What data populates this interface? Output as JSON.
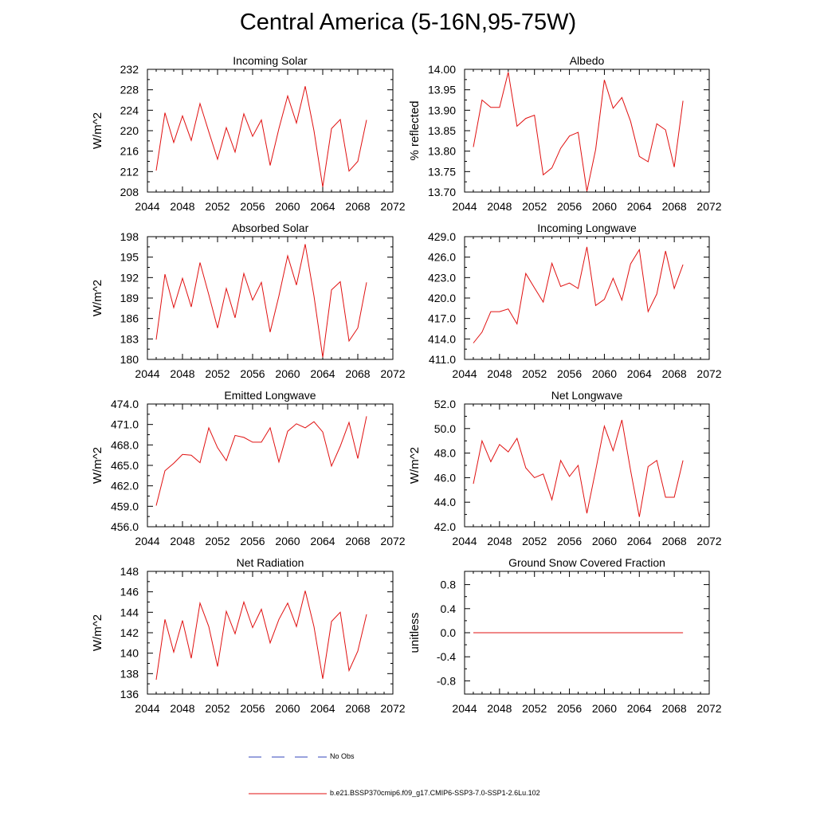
{
  "title": "Central America (5-16N,95-75W)",
  "colors": {
    "model": "#e01010",
    "obs": "#3344bb",
    "axis": "#000000"
  },
  "legend": {
    "obs_label": "No Obs",
    "model_label": "b.e21.BSSP370cmip6.f09_g17.CMIP6-SSP3-7.0-SSP1-2.6Lu.102"
  },
  "chart_data": [
    {
      "type": "line",
      "title": "Incoming Solar",
      "ylabel": "W/m^2",
      "xlim": [
        2044,
        2072
      ],
      "ylim": [
        208,
        232
      ],
      "xticks": [
        "2044",
        "2048",
        "2052",
        "2056",
        "2060",
        "2064",
        "2068",
        "2072"
      ],
      "yticks": [
        "208",
        "212",
        "216",
        "220",
        "224",
        "228",
        "232"
      ],
      "x": [
        2045,
        2046,
        2047,
        2048,
        2049,
        2050,
        2051,
        2052,
        2053,
        2054,
        2055,
        2056,
        2057,
        2058,
        2059,
        2060,
        2061,
        2062,
        2063,
        2064,
        2065,
        2066,
        2067,
        2068,
        2069
      ],
      "series": [
        {
          "values": [
            212.2,
            223.5,
            217.7,
            222.9,
            218.1,
            225.3,
            219.8,
            214.4,
            220.6,
            215.8,
            223.3,
            218.9,
            222.1,
            213.2,
            220.4,
            226.8,
            221.5,
            228.7,
            220.0,
            209.0,
            220.4,
            222.2,
            212.1,
            214.0,
            222.1
          ]
        }
      ]
    },
    {
      "type": "line",
      "title": "Albedo",
      "ylabel": "% reflected",
      "xlim": [
        2044,
        2072
      ],
      "ylim": [
        13.7,
        14.0
      ],
      "xticks": [
        "2044",
        "2048",
        "2052",
        "2056",
        "2060",
        "2064",
        "2068",
        "2072"
      ],
      "yticks": [
        "13.70",
        "13.75",
        "13.80",
        "13.85",
        "13.90",
        "13.95",
        "14.00"
      ],
      "x": [
        2045,
        2046,
        2047,
        2048,
        2049,
        2050,
        2051,
        2052,
        2053,
        2054,
        2055,
        2056,
        2057,
        2058,
        2059,
        2060,
        2061,
        2062,
        2063,
        2064,
        2065,
        2066,
        2067,
        2068,
        2069
      ],
      "series": [
        {
          "values": [
            13.81,
            13.925,
            13.907,
            13.907,
            13.993,
            13.861,
            13.88,
            13.888,
            13.742,
            13.759,
            13.807,
            13.837,
            13.846,
            13.702,
            13.804,
            13.974,
            13.905,
            13.931,
            13.873,
            13.787,
            13.774,
            13.867,
            13.852,
            13.761,
            13.923
          ]
        }
      ]
    },
    {
      "type": "line",
      "title": "Absorbed Solar",
      "ylabel": "W/m^2",
      "xlim": [
        2044,
        2072
      ],
      "ylim": [
        180,
        198
      ],
      "xticks": [
        "2044",
        "2048",
        "2052",
        "2056",
        "2060",
        "2064",
        "2068",
        "2072"
      ],
      "yticks": [
        "180",
        "183",
        "186",
        "189",
        "192",
        "195",
        "198"
      ],
      "x": [
        2045,
        2046,
        2047,
        2048,
        2049,
        2050,
        2051,
        2052,
        2053,
        2054,
        2055,
        2056,
        2057,
        2058,
        2059,
        2060,
        2061,
        2062,
        2063,
        2064,
        2065,
        2066,
        2067,
        2068,
        2069
      ],
      "series": [
        {
          "values": [
            182.9,
            192.5,
            187.6,
            191.9,
            187.7,
            194.2,
            189.5,
            184.6,
            190.4,
            186.1,
            192.6,
            188.7,
            191.3,
            184.0,
            189.3,
            195.2,
            190.9,
            196.9,
            189.3,
            180.3,
            190.2,
            191.4,
            182.7,
            184.6,
            191.3
          ]
        }
      ]
    },
    {
      "type": "line",
      "title": "Incoming Longwave",
      "ylabel": "",
      "xlim": [
        2044,
        2072
      ],
      "ylim": [
        411.0,
        429.0
      ],
      "xticks": [
        "2044",
        "2048",
        "2052",
        "2056",
        "2060",
        "2064",
        "2068",
        "2072"
      ],
      "yticks": [
        "411.0",
        "414.0",
        "417.0",
        "420.0",
        "423.0",
        "426.0",
        "429.0"
      ],
      "x": [
        2045,
        2046,
        2047,
        2048,
        2049,
        2050,
        2051,
        2052,
        2053,
        2054,
        2055,
        2056,
        2057,
        2058,
        2059,
        2060,
        2061,
        2062,
        2063,
        2064,
        2065,
        2066,
        2067,
        2068,
        2069
      ],
      "series": [
        {
          "values": [
            413.4,
            415.0,
            418.0,
            418.0,
            418.4,
            416.2,
            423.6,
            421.5,
            419.4,
            425.1,
            421.7,
            422.2,
            421.4,
            427.5,
            418.9,
            419.8,
            422.9,
            419.7,
            425.0,
            427.1,
            418.0,
            420.6,
            426.9,
            421.4,
            424.9
          ]
        }
      ]
    },
    {
      "type": "line",
      "title": "Emitted Longwave",
      "ylabel": "W/m^2",
      "xlim": [
        2044,
        2072
      ],
      "ylim": [
        456.0,
        474.0
      ],
      "xticks": [
        "2044",
        "2048",
        "2052",
        "2056",
        "2060",
        "2064",
        "2068",
        "2072"
      ],
      "yticks": [
        "456.0",
        "459.0",
        "462.0",
        "465.0",
        "468.0",
        "471.0",
        "474.0"
      ],
      "x": [
        2045,
        2046,
        2047,
        2048,
        2049,
        2050,
        2051,
        2052,
        2053,
        2054,
        2055,
        2056,
        2057,
        2058,
        2059,
        2060,
        2061,
        2062,
        2063,
        2064,
        2065,
        2066,
        2067,
        2068,
        2069
      ],
      "series": [
        {
          "values": [
            459.1,
            464.2,
            465.3,
            466.6,
            466.5,
            465.4,
            470.5,
            467.6,
            465.7,
            469.4,
            469.1,
            468.4,
            468.4,
            470.5,
            465.5,
            470.0,
            471.1,
            470.5,
            471.4,
            469.9,
            464.9,
            467.8,
            471.3,
            466.0,
            472.2
          ]
        }
      ]
    },
    {
      "type": "line",
      "title": "Net Longwave",
      "ylabel": "W/m^2",
      "xlim": [
        2044,
        2072
      ],
      "ylim": [
        42.0,
        52.0
      ],
      "xticks": [
        "2044",
        "2048",
        "2052",
        "2056",
        "2060",
        "2064",
        "2068",
        "2072"
      ],
      "yticks": [
        "42.0",
        "44.0",
        "46.0",
        "48.0",
        "50.0",
        "52.0"
      ],
      "x": [
        2045,
        2046,
        2047,
        2048,
        2049,
        2050,
        2051,
        2052,
        2053,
        2054,
        2055,
        2056,
        2057,
        2058,
        2059,
        2060,
        2061,
        2062,
        2063,
        2064,
        2065,
        2066,
        2067,
        2068,
        2069
      ],
      "series": [
        {
          "values": [
            45.5,
            49.0,
            47.3,
            48.7,
            48.1,
            49.2,
            46.8,
            46.0,
            46.3,
            44.2,
            47.4,
            46.1,
            47.0,
            43.1,
            46.6,
            50.2,
            48.2,
            50.7,
            46.6,
            42.8,
            46.9,
            47.4,
            44.4,
            44.4,
            47.4
          ]
        }
      ]
    },
    {
      "type": "line",
      "title": "Net Radiation",
      "ylabel": "W/m^2",
      "xlim": [
        2044,
        2072
      ],
      "ylim": [
        136,
        148
      ],
      "xticks": [
        "2044",
        "2048",
        "2052",
        "2056",
        "2060",
        "2064",
        "2068",
        "2072"
      ],
      "yticks": [
        "136",
        "138",
        "140",
        "142",
        "144",
        "146",
        "148"
      ],
      "x": [
        2045,
        2046,
        2047,
        2048,
        2049,
        2050,
        2051,
        2052,
        2053,
        2054,
        2055,
        2056,
        2057,
        2058,
        2059,
        2060,
        2061,
        2062,
        2063,
        2064,
        2065,
        2066,
        2067,
        2068,
        2069
      ],
      "series": [
        {
          "values": [
            137.4,
            143.3,
            140.1,
            143.2,
            139.5,
            144.9,
            142.6,
            138.7,
            144.1,
            141.9,
            145.0,
            142.5,
            144.3,
            141.0,
            143.3,
            144.9,
            142.6,
            146.1,
            142.6,
            137.5,
            143.1,
            144.0,
            138.3,
            140.2,
            143.8
          ]
        }
      ]
    },
    {
      "type": "line",
      "title": "Ground Snow Covered Fraction",
      "ylabel": "unitless",
      "xlim": [
        2044,
        2072
      ],
      "ylim": [
        -1.02,
        1.02
      ],
      "xticks": [
        "2044",
        "2048",
        "2052",
        "2056",
        "2060",
        "2064",
        "2068",
        "2072"
      ],
      "ytick_values": [
        -0.8,
        -0.4,
        0.0,
        0.4,
        0.8
      ],
      "yticks": [
        "-0.8",
        "-0.4",
        "0.0",
        "0.4",
        "0.8"
      ],
      "x": [
        2045,
        2046,
        2047,
        2048,
        2049,
        2050,
        2051,
        2052,
        2053,
        2054,
        2055,
        2056,
        2057,
        2058,
        2059,
        2060,
        2061,
        2062,
        2063,
        2064,
        2065,
        2066,
        2067,
        2068,
        2069
      ],
      "series": [
        {
          "values": [
            0,
            0,
            0,
            0,
            0,
            0,
            0,
            0,
            0,
            0,
            0,
            0,
            0,
            0,
            0,
            0,
            0,
            0,
            0,
            0,
            0,
            0,
            0,
            0,
            0
          ]
        }
      ]
    }
  ]
}
